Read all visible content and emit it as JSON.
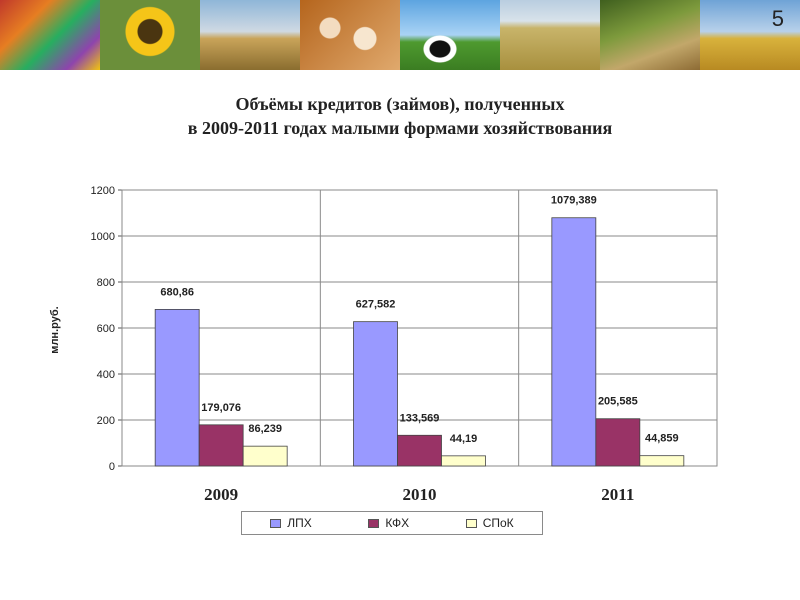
{
  "slide_number": "5",
  "banner": [
    "fruits-vegetables",
    "sunflower",
    "wheat",
    "eggs",
    "cows",
    "field",
    "onions",
    "combine"
  ],
  "title_line1": "Объёмы кредитов (займов), полученных",
  "title_line2": "в 2009-2011 годах малыми формами хозяйствования",
  "chart_data": {
    "type": "bar",
    "categories": [
      "2009",
      "2010",
      "2011"
    ],
    "series": [
      {
        "name": "ЛПХ",
        "values": [
          680.86,
          627.582,
          1079.389
        ],
        "labels": [
          "680,86",
          "627,582",
          "1079,389"
        ],
        "color": "#9999ff"
      },
      {
        "name": "КФХ",
        "values": [
          179.076,
          133.569,
          205.585
        ],
        "labels": [
          "179,076",
          "133,569",
          "205,585"
        ],
        "color": "#993366"
      },
      {
        "name": "СПоК",
        "values": [
          86.239,
          44.19,
          44.859
        ],
        "labels": [
          "86,239",
          "44,19",
          "44,859"
        ],
        "color": "#ffffcc"
      }
    ],
    "ylabel": "млн.руб.",
    "ylim": [
      0,
      1200
    ],
    "yticks": [
      "0",
      "200",
      "400",
      "600",
      "800",
      "1000",
      "1200"
    ],
    "grid": true,
    "legend_position": "bottom"
  }
}
